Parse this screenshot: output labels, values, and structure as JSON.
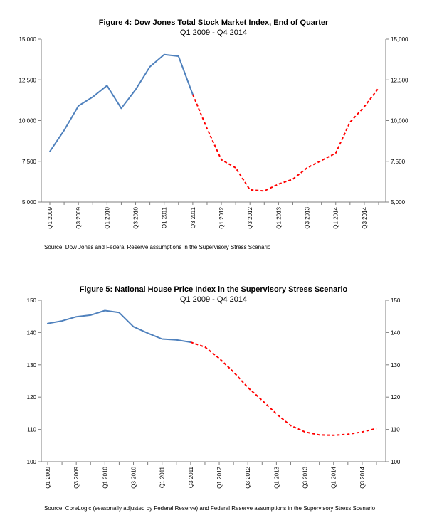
{
  "chart_data": [
    {
      "type": "line",
      "title": "Figure 4: Dow Jones Total Stock Market Index, End of Quarter",
      "subtitle": "Q1 2009 - Q4 2014",
      "source": "Source: Dow Jones and Federal Reserve assumptions in the Supervisory Stress Scenario",
      "categories": [
        "Q1 2009",
        "Q2 2009",
        "Q3 2009",
        "Q4 2009",
        "Q1 2010",
        "Q2 2010",
        "Q3 2010",
        "Q4 2010",
        "Q1 2011",
        "Q2 2011",
        "Q3 2011",
        "Q4 2011",
        "Q1 2012",
        "Q2 2012",
        "Q3 2012",
        "Q4 2012",
        "Q1 2013",
        "Q2 2013",
        "Q3 2013",
        "Q4 2013",
        "Q1 2014",
        "Q2 2014",
        "Q3 2014",
        "Q4 2014"
      ],
      "tick_labels": [
        "Q1 2009",
        "Q3 2009",
        "Q1 2010",
        "Q3 2010",
        "Q1 2011",
        "Q3 2011",
        "Q1 2012",
        "Q3 2012",
        "Q1 2013",
        "Q3 2013",
        "Q1 2014",
        "Q3 2014"
      ],
      "series": [
        {
          "values": [
            8100,
            9400,
            10900,
            11450,
            12150,
            10750,
            11900,
            13300,
            14050,
            13950,
            11600,
            null,
            null,
            null,
            null,
            null,
            null,
            null,
            null,
            null,
            null,
            null,
            null,
            null
          ],
          "color": "#4f81bd",
          "style": "solid"
        },
        {
          "values": [
            null,
            null,
            null,
            null,
            null,
            null,
            null,
            null,
            null,
            null,
            11600,
            9500,
            7600,
            7100,
            5750,
            5680,
            6100,
            6400,
            7100,
            7550,
            8000,
            9900,
            10850,
            12000
          ],
          "color": "#ff0000",
          "style": "dashed"
        }
      ],
      "ylim": [
        5000,
        15000
      ],
      "yticks": [
        "5,000",
        "7,500",
        "10,000",
        "12,500",
        "15,000"
      ],
      "ytick_values": [
        5000,
        7500,
        10000,
        12500,
        15000
      ],
      "dual_axis": true,
      "grid": false
    },
    {
      "type": "line",
      "title": "Figure 5: National House Price Index in the Supervisory Stress Scenario",
      "subtitle": "Q1 2009 - Q4 2014",
      "source": "Source:  CoreLogic (seasonally adjusted by Federal Reserve) and Federal Reserve assumptions in the Supervisory Stress Scenario",
      "categories": [
        "Q1 2009",
        "Q2 2009",
        "Q3 2009",
        "Q4 2009",
        "Q1 2010",
        "Q2 2010",
        "Q3 2010",
        "Q4 2010",
        "Q1 2011",
        "Q2 2011",
        "Q3 2011",
        "Q4 2011",
        "Q1 2012",
        "Q2 2012",
        "Q3 2012",
        "Q4 2012",
        "Q1 2013",
        "Q2 2013",
        "Q3 2013",
        "Q4 2013",
        "Q1 2014",
        "Q2 2014",
        "Q3 2014",
        "Q4 2014"
      ],
      "tick_labels": [
        "Q1 2009",
        "Q3 2009",
        "Q1 2010",
        "Q3 2010",
        "Q1 2011",
        "Q3 2011",
        "Q1 2012",
        "Q3 2012",
        "Q1 2013",
        "Q3 2013",
        "Q1 2014",
        "Q3 2014"
      ],
      "series": [
        {
          "values": [
            142.8,
            143.6,
            144.9,
            145.4,
            146.8,
            146.2,
            141.8,
            139.8,
            138.0,
            137.7,
            137.0,
            null,
            null,
            null,
            null,
            null,
            null,
            null,
            null,
            null,
            null,
            null,
            null,
            null
          ],
          "color": "#4f81bd",
          "style": "solid"
        },
        {
          "values": [
            null,
            null,
            null,
            null,
            null,
            null,
            null,
            null,
            null,
            null,
            137.0,
            135.5,
            132.0,
            127.8,
            123.0,
            119.0,
            114.8,
            111.2,
            109.2,
            108.3,
            108.2,
            108.5,
            109.2,
            110.3
          ],
          "color": "#ff0000",
          "style": "dashed"
        }
      ],
      "ylim": [
        100,
        150
      ],
      "yticks": [
        "100",
        "110",
        "120",
        "130",
        "140",
        "150"
      ],
      "ytick_values": [
        100,
        110,
        120,
        130,
        140,
        150
      ],
      "dual_axis": true,
      "grid": false
    }
  ]
}
